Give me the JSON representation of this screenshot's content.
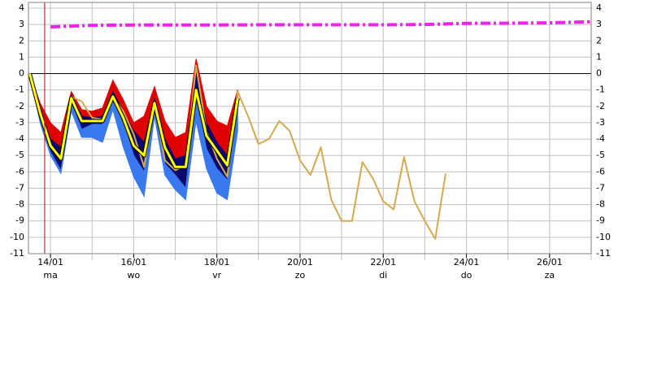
{
  "chart_data": {
    "type": "line",
    "xlim": [
      13.47,
      27
    ],
    "ylim": [
      -11,
      4
    ],
    "yticks": [
      -11,
      -10,
      -9,
      -8,
      -7,
      -6,
      -5,
      -4,
      -3,
      -2,
      -1,
      0,
      1,
      2,
      3,
      4
    ],
    "xticks": [
      {
        "value": 14,
        "label": "14/01"
      },
      {
        "value": 16,
        "label": "16/01"
      },
      {
        "value": 18,
        "label": "18/01"
      },
      {
        "value": 20,
        "label": "20/01"
      },
      {
        "value": 22,
        "label": "22/01"
      },
      {
        "value": 24,
        "label": "24/01"
      },
      {
        "value": 26,
        "label": "26/01"
      }
    ],
    "x_day_labels": [
      "ma",
      "wo",
      "vr",
      "zo",
      "di",
      "do",
      "za"
    ],
    "x_grid": [
      14,
      15,
      16,
      17,
      18,
      19,
      20,
      21,
      22,
      23,
      24,
      25,
      26,
      27
    ],
    "grid": true,
    "now_line": 13.86,
    "now_color": "#cc0000",
    "series": [
      {
        "color": "#e00000",
        "fill": "#e00000",
        "line": false,
        "x": [
          13.5,
          13.75,
          14,
          14.25,
          14.5,
          14.75,
          15,
          15.25,
          15.5,
          15.75,
          16,
          16.25,
          16.5,
          16.75,
          17,
          17.25,
          17.5,
          17.75,
          18,
          18.25,
          18.5
        ],
        "values": [
          0,
          -1.8,
          -3,
          -3.6,
          -1.1,
          -2.2,
          -2.3,
          -2.1,
          -0.4,
          -1.6,
          -3,
          -2.6,
          -0.8,
          -2.9,
          -3.9,
          -3.6,
          0.9,
          -2,
          -2.9,
          -3.2,
          -1
        ]
      },
      {
        "color": "#000070",
        "fill": "#0a0a6e",
        "line": false,
        "x": [
          13.5,
          13.75,
          14,
          14.25,
          14.5,
          14.75,
          15,
          15.25,
          15.5,
          15.75,
          16,
          16.25,
          16.5,
          16.75,
          17,
          17.25,
          17.5,
          17.75,
          18,
          18.25,
          18.5
        ],
        "values": [
          0,
          -2.2,
          -4,
          -4.5,
          -1.3,
          -2.6,
          -2.7,
          -2.6,
          -1.1,
          -2.3,
          -3.5,
          -4.2,
          -1.5,
          -4,
          -5.2,
          -5,
          0.1,
          -3,
          -4.2,
          -5,
          -1.1
        ]
      },
      {
        "color": "#3a78f0",
        "fill": "#3a78f0",
        "line": false,
        "x": [
          13.5,
          13.75,
          14,
          14.25,
          14.5,
          14.75,
          15,
          15.25,
          15.5,
          15.75,
          16,
          16.25,
          16.5,
          16.75,
          17,
          17.25,
          17.5,
          17.75,
          18,
          18.25,
          18.5
        ],
        "values": [
          0,
          -2.8,
          -4.8,
          -5.9,
          -1.8,
          -3.4,
          -3.1,
          -3.1,
          -1.6,
          -3,
          -5,
          -6,
          -2.3,
          -5.5,
          -6.2,
          -7,
          -1.4,
          -4.6,
          -5.8,
          -6.5,
          -2.2
        ]
      },
      {
        "color": "#3a78f0",
        "line": false,
        "x": [
          13.5,
          13.75,
          14,
          14.25,
          14.5,
          14.75,
          15,
          15.25,
          15.5,
          15.75,
          16,
          16.25,
          16.5,
          16.75,
          17,
          17.25,
          17.5,
          17.75,
          18,
          18.25,
          18.5
        ],
        "values": [
          0,
          -3,
          -5,
          -6.1,
          -2.3,
          -3.9,
          -3.9,
          -4.2,
          -2.2,
          -4.5,
          -6.3,
          -7.5,
          -2.6,
          -6.2,
          -7.1,
          -7.7,
          -2.9,
          -5.8,
          -7.3,
          -7.7,
          -3.5
        ]
      },
      {
        "color": "#d4aa50",
        "line": true,
        "width": 2,
        "x": [
          13.5,
          13.75,
          14,
          14.25,
          14.5,
          14.75,
          15,
          15.25,
          15.5,
          15.75,
          16,
          16.25,
          16.5,
          16.75,
          17,
          17.25,
          17.5,
          17.75,
          18,
          18.25,
          18.5,
          18.75,
          19,
          19.25,
          19.5,
          19.75,
          20,
          20.25,
          20.5,
          20.75,
          21,
          21.25,
          21.5,
          21.75,
          22,
          22.25,
          22.5,
          22.75,
          23,
          23.25,
          23.5
        ],
        "values": [
          0,
          -2.5,
          -4.3,
          -5.2,
          -1.4,
          -1.7,
          -2.7,
          -2.8,
          -1.4,
          -2.3,
          -3.7,
          -5.7,
          -1.8,
          -5.3,
          -5.9,
          -5.6,
          0.5,
          -3.5,
          -5.2,
          -6.3,
          -1.1,
          -2.6,
          -4.3,
          -4,
          -2.9,
          -3.5,
          -5.3,
          -6.2,
          -4.5,
          -7.7,
          -9,
          -9,
          -5.4,
          -6.4,
          -7.8,
          -8.3,
          -5.1,
          -7.8,
          -9,
          -10.1,
          -6.1
        ]
      },
      {
        "color": "#ffff00",
        "line": true,
        "width": 3,
        "outline": "#000000",
        "x": [
          13.5,
          13.75,
          14,
          14.25,
          14.5,
          14.75,
          15,
          15.25,
          15.5,
          15.75,
          16,
          16.25,
          16.5,
          16.75,
          17,
          17.25,
          17.5,
          17.75,
          18,
          18.25,
          18.5
        ],
        "values": [
          0,
          -2.4,
          -4.4,
          -5.2,
          -1.5,
          -2.9,
          -2.9,
          -2.9,
          -1.4,
          -2.7,
          -4.4,
          -5,
          -1.8,
          -4.5,
          -5.7,
          -5.7,
          -1,
          -3.8,
          -4.7,
          -5.6,
          -1.5
        ]
      },
      {
        "color": "#ee22ee",
        "line": true,
        "width": 4,
        "dash": "12 4 3 4",
        "x": [
          14,
          15,
          16,
          17,
          18,
          19,
          20,
          21,
          22,
          23,
          24,
          25,
          26,
          27
        ],
        "values": [
          2.85,
          2.95,
          2.97,
          2.97,
          2.97,
          2.98,
          2.98,
          2.98,
          2.98,
          3,
          3.07,
          3.08,
          3.1,
          3.17
        ]
      }
    ]
  }
}
